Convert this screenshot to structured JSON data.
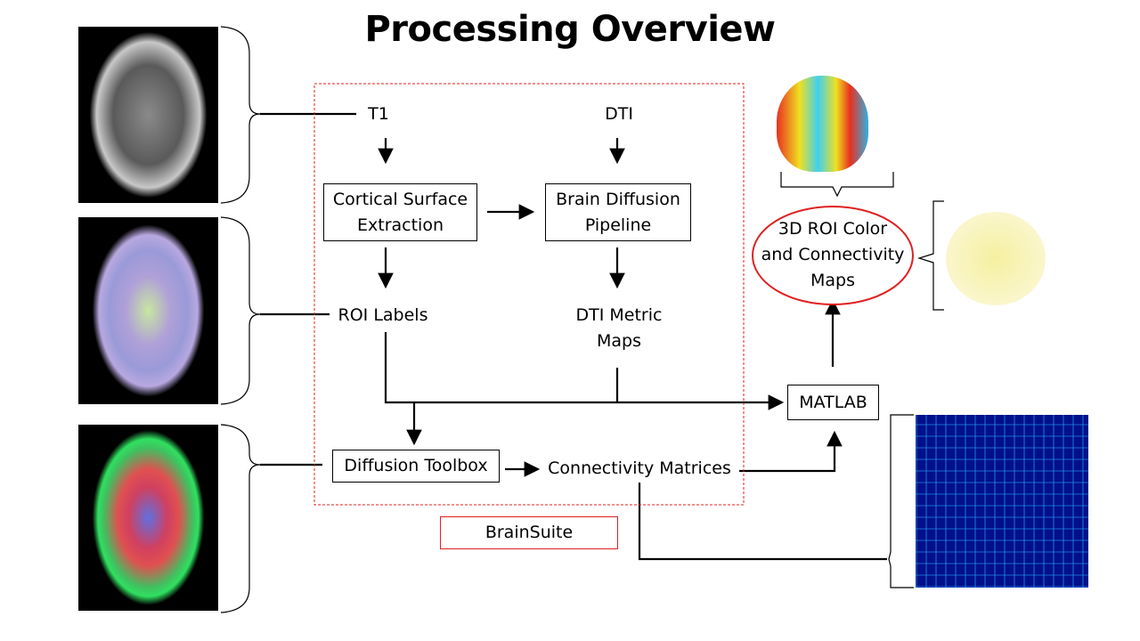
{
  "title": "Processing Overview",
  "nodes": {
    "t1": "T1",
    "dti": "DTI",
    "cortical_line1": "Cortical Surface",
    "cortical_line2": "Extraction",
    "bdp_line1": "Brain Diffusion",
    "bdp_line2": "Pipeline",
    "roi_labels": "ROI Labels",
    "dti_metric_line1": "DTI Metric",
    "dti_metric_line2": "Maps",
    "diffusion_toolbox": "Diffusion Toolbox",
    "connectivity_matrices": "Connectivity Matrices",
    "matlab": "MATLAB",
    "roi_maps_line1": "3D ROI Color",
    "roi_maps_line2": "and Connectivity",
    "roi_maps_line3": "Maps",
    "brainsuite": "BrainSuite"
  },
  "colors": {
    "brainsuite_border": "#e02020",
    "ellipse_border": "#e02020",
    "matrix_bg": "#00108a"
  }
}
